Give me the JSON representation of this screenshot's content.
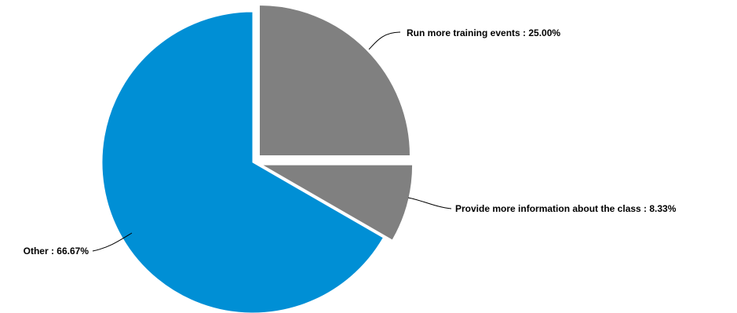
{
  "chart_data": {
    "type": "pie",
    "title": "",
    "categories": [
      "Run more training events",
      "Provide more information about the class",
      "Other"
    ],
    "values": [
      25.0,
      8.33,
      66.67
    ],
    "units": "%",
    "labels": [
      "Run more training events : 25.00%",
      "Provide more information about the class : 8.33%",
      "Other : 66.67%"
    ],
    "colors": [
      "#808080",
      "#808080",
      "#008FD5"
    ],
    "slice_border_color": "#FFFFFF",
    "exploded_slices": [
      "Run more training events",
      "Provide more information about the class"
    ],
    "start_angle": "12 o'clock",
    "direction": "clockwise",
    "legend": "none",
    "label_style": "outside with leader lines"
  }
}
